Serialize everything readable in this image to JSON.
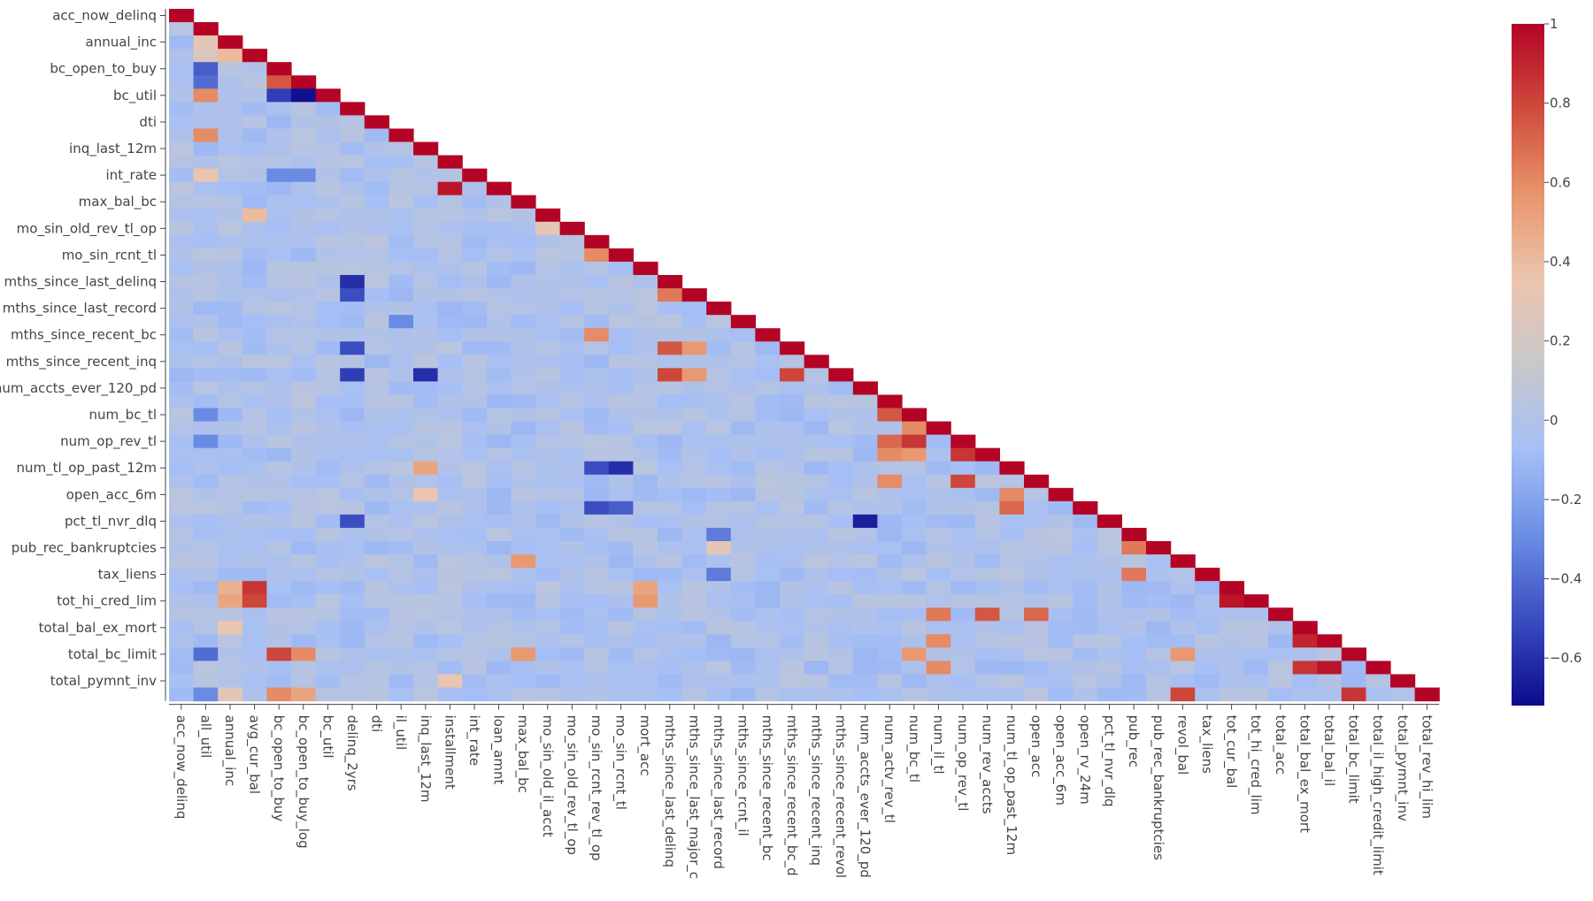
{
  "chart_data": {
    "type": "heatmap",
    "title": "",
    "xlabel": "",
    "ylabel": "",
    "x_categories": [
      "acc_now_delinq",
      "all_util",
      "annual_inc",
      "avg_cur_bal",
      "bc_open_to_buy",
      "bc_open_to_buy_log",
      "bc_util",
      "delinq_2yrs",
      "dti",
      "il_util",
      "inq_last_12m",
      "installment",
      "int_rate",
      "loan_amnt",
      "max_bal_bc",
      "mo_sin_old_il_acct",
      "mo_sin_old_rev_tl_op",
      "mo_sin_rcnt_rev_tl_op",
      "mo_sin_rcnt_tl",
      "mort_acc",
      "mths_since_last_delinq",
      "mths_since_last_major_c",
      "mths_since_last_record",
      "mths_since_rcnt_il",
      "mths_since_recent_bc",
      "mths_since_recent_bc_d",
      "mths_since_recent_inq",
      "mths_since_recent_revol",
      "num_accts_ever_120_pd",
      "num_actv_rev_tl",
      "num_bc_tl",
      "num_il_tl",
      "num_op_rev_tl",
      "num_rev_accts",
      "num_tl_op_past_12m",
      "open_acc",
      "open_acc_6m",
      "open_rv_24m",
      "pct_tl_nvr_dlq",
      "pub_rec",
      "pub_rec_bankruptcies",
      "revol_bal",
      "tax_liens",
      "tot_cur_bal",
      "tot_hi_cred_lim",
      "total_acc",
      "total_bal_ex_mort",
      "total_bal_il",
      "total_bc_limit",
      "total_il_high_credit_limit",
      "total_pymnt_inv",
      "total_rev_hi_lim"
    ],
    "y_tick_labels": [
      "acc_now_delinq",
      "annual_inc",
      "bc_open_to_buy",
      "bc_util",
      "dti",
      "inq_last_12m",
      "int_rate",
      "max_bal_bc",
      "mo_sin_old_rev_tl_op",
      "mo_sin_rcnt_tl",
      "mths_since_last_delinq",
      "mths_since_last_record",
      "mths_since_recent_bc",
      "mths_since_recent_inq",
      "num_accts_ever_120_pd",
      "num_bc_tl",
      "num_op_rev_tl",
      "num_tl_op_past_12m",
      "open_acc_6m",
      "pct_tl_nvr_dlq",
      "pub_rec_bankruptcies",
      "tax_liens",
      "tot_hi_cred_lim",
      "total_bal_ex_mort",
      "total_bc_limit",
      "total_pymnt_inv"
    ],
    "y_tick_every": 2,
    "mask": "lower-triangle (cells above the diagonal are blank)",
    "diagonal_value": 1,
    "default_value": -0.03,
    "highlights": [
      {
        "x": "all_util",
        "y": "annual_inc",
        "value": 0.3
      },
      {
        "x": "all_util",
        "y": "avg_cur_bal",
        "value": 0.25
      },
      {
        "x": "all_util",
        "y": "bc_open_to_buy",
        "value": -0.45
      },
      {
        "x": "all_util",
        "y": "bc_open_to_buy_log",
        "value": -0.4
      },
      {
        "x": "all_util",
        "y": "bc_util",
        "value": 0.6
      },
      {
        "x": "all_util",
        "y": "il_util",
        "value": 0.6
      },
      {
        "x": "all_util",
        "y": "int_rate",
        "value": 0.35
      },
      {
        "x": "all_util",
        "y": "num_bc_tl",
        "value": -0.3
      },
      {
        "x": "all_util",
        "y": "num_op_rev_tl",
        "value": -0.3
      },
      {
        "x": "all_util",
        "y": "total_bc_limit",
        "value": -0.4
      },
      {
        "x": "all_util",
        "y": "total_rev_hi_lim",
        "value": -0.3
      },
      {
        "x": "annual_inc",
        "y": "avg_cur_bal",
        "value": 0.4
      },
      {
        "x": "annual_inc",
        "y": "tot_cur_bal",
        "value": 0.45
      },
      {
        "x": "annual_inc",
        "y": "tot_hi_cred_lim",
        "value": 0.5
      },
      {
        "x": "annual_inc",
        "y": "total_bal_ex_mort",
        "value": 0.35
      },
      {
        "x": "annual_inc",
        "y": "total_rev_hi_lim",
        "value": 0.3
      },
      {
        "x": "avg_cur_bal",
        "y": "tot_cur_bal",
        "value": 0.85
      },
      {
        "x": "avg_cur_bal",
        "y": "tot_hi_cred_lim",
        "value": 0.8
      },
      {
        "x": "avg_cur_bal",
        "y": "mo_sin_old_il_acct",
        "value": 0.4
      },
      {
        "x": "bc_open_to_buy",
        "y": "bc_open_to_buy_log",
        "value": 0.75
      },
      {
        "x": "bc_open_to_buy",
        "y": "bc_util",
        "value": -0.55
      },
      {
        "x": "bc_open_to_buy",
        "y": "int_rate",
        "value": -0.3
      },
      {
        "x": "bc_open_to_buy",
        "y": "total_bc_limit",
        "value": 0.8
      },
      {
        "x": "bc_open_to_buy",
        "y": "total_rev_hi_lim",
        "value": 0.6
      },
      {
        "x": "bc_open_to_buy_log",
        "y": "bc_util",
        "value": -0.7
      },
      {
        "x": "bc_open_to_buy_log",
        "y": "int_rate",
        "value": -0.3
      },
      {
        "x": "bc_open_to_buy_log",
        "y": "total_bc_limit",
        "value": 0.6
      },
      {
        "x": "bc_open_to_buy_log",
        "y": "total_rev_hi_lim",
        "value": 0.5
      },
      {
        "x": "delinq_2yrs",
        "y": "mths_since_last_delinq",
        "value": -0.6
      },
      {
        "x": "delinq_2yrs",
        "y": "mths_since_last_major_c",
        "value": -0.5
      },
      {
        "x": "delinq_2yrs",
        "y": "mths_since_recent_bc_d",
        "value": -0.5
      },
      {
        "x": "delinq_2yrs",
        "y": "mths_since_recent_revol",
        "value": -0.55
      },
      {
        "x": "delinq_2yrs",
        "y": "pct_tl_nvr_dlq",
        "value": -0.5
      },
      {
        "x": "il_util",
        "y": "mths_since_rcnt_il",
        "value": -0.3
      },
      {
        "x": "inq_last_12m",
        "y": "mths_since_recent_revol",
        "value": -0.6
      },
      {
        "x": "inq_last_12m",
        "y": "num_tl_op_past_12m",
        "value": 0.5
      },
      {
        "x": "inq_last_12m",
        "y": "open_acc_6m",
        "value": 0.35
      },
      {
        "x": "installment",
        "y": "loan_amnt",
        "value": 0.95
      },
      {
        "x": "installment",
        "y": "total_pymnt_inv",
        "value": 0.35
      },
      {
        "x": "max_bal_bc",
        "y": "revol_bal",
        "value": 0.55
      },
      {
        "x": "max_bal_bc",
        "y": "total_bc_limit",
        "value": 0.55
      },
      {
        "x": "mo_sin_old_il_acct",
        "y": "mo_sin_old_rev_tl_op",
        "value": 0.3
      },
      {
        "x": "mo_sin_rcnt_rev_tl_op",
        "y": "mo_sin_rcnt_tl",
        "value": 0.6
      },
      {
        "x": "mo_sin_rcnt_rev_tl_op",
        "y": "mths_since_recent_bc",
        "value": 0.6
      },
      {
        "x": "mo_sin_rcnt_rev_tl_op",
        "y": "num_tl_op_past_12m",
        "value": -0.5
      },
      {
        "x": "mo_sin_rcnt_rev_tl_op",
        "y": "open_rv_24m",
        "value": -0.5
      },
      {
        "x": "mo_sin_rcnt_tl",
        "y": "num_tl_op_past_12m",
        "value": -0.6
      },
      {
        "x": "mo_sin_rcnt_tl",
        "y": "open_rv_24m",
        "value": -0.45
      },
      {
        "x": "mort_acc",
        "y": "tot_hi_cred_lim",
        "value": 0.55
      },
      {
        "x": "mort_acc",
        "y": "tot_cur_bal",
        "value": 0.5
      },
      {
        "x": "mths_since_last_delinq",
        "y": "mths_since_last_major_c",
        "value": 0.65
      },
      {
        "x": "mths_since_last_delinq",
        "y": "mths_since_recent_bc_d",
        "value": 0.75
      },
      {
        "x": "mths_since_last_delinq",
        "y": "mths_since_recent_revol",
        "value": 0.8
      },
      {
        "x": "mths_since_last_major_c",
        "y": "mths_since_recent_bc_d",
        "value": 0.55
      },
      {
        "x": "mths_since_last_major_c",
        "y": "mths_since_recent_revol",
        "value": 0.55
      },
      {
        "x": "mths_since_last_record",
        "y": "pub_rec",
        "value": -0.35
      },
      {
        "x": "mths_since_last_record",
        "y": "pub_rec_bankruptcies",
        "value": 0.3
      },
      {
        "x": "mths_since_last_record",
        "y": "tax_liens",
        "value": -0.35
      },
      {
        "x": "mths_since_recent_bc_d",
        "y": "mths_since_recent_revol",
        "value": 0.8
      },
      {
        "x": "num_accts_ever_120_pd",
        "y": "pct_tl_nvr_dlq",
        "value": -0.65
      },
      {
        "x": "num_actv_rev_tl",
        "y": "num_bc_tl",
        "value": 0.75
      },
      {
        "x": "num_actv_rev_tl",
        "y": "num_op_rev_tl",
        "value": 0.7
      },
      {
        "x": "num_actv_rev_tl",
        "y": "num_rev_accts",
        "value": 0.6
      },
      {
        "x": "num_actv_rev_tl",
        "y": "open_acc",
        "value": 0.6
      },
      {
        "x": "num_bc_tl",
        "y": "num_il_tl",
        "value": 0.6
      },
      {
        "x": "num_bc_tl",
        "y": "num_op_rev_tl",
        "value": 0.85
      },
      {
        "x": "num_bc_tl",
        "y": "num_rev_accts",
        "value": 0.55
      },
      {
        "x": "num_bc_tl",
        "y": "total_bc_limit",
        "value": 0.55
      },
      {
        "x": "num_il_tl",
        "y": "total_acc",
        "value": 0.65
      },
      {
        "x": "num_il_tl",
        "y": "total_bal_il",
        "value": 0.6
      },
      {
        "x": "num_il_tl",
        "y": "total_il_high_credit_limit",
        "value": 0.6
      },
      {
        "x": "num_op_rev_tl",
        "y": "num_rev_accts",
        "value": 0.85
      },
      {
        "x": "num_op_rev_tl",
        "y": "open_acc",
        "value": 0.8
      },
      {
        "x": "num_rev_accts",
        "y": "total_acc",
        "value": 0.75
      },
      {
        "x": "num_tl_op_past_12m",
        "y": "open_acc_6m",
        "value": 0.6
      },
      {
        "x": "num_tl_op_past_12m",
        "y": "open_rv_24m",
        "value": 0.7
      },
      {
        "x": "open_acc",
        "y": "total_acc",
        "value": 0.7
      },
      {
        "x": "pub_rec",
        "y": "pub_rec_bankruptcies",
        "value": 0.65
      },
      {
        "x": "pub_rec",
        "y": "tax_liens",
        "value": 0.65
      },
      {
        "x": "revol_bal",
        "y": "total_rev_hi_lim",
        "value": 0.8
      },
      {
        "x": "revol_bal",
        "y": "total_bc_limit",
        "value": 0.55
      },
      {
        "x": "tot_cur_bal",
        "y": "tot_hi_cred_lim",
        "value": 0.95
      },
      {
        "x": "total_bal_ex_mort",
        "y": "total_bal_il",
        "value": 0.9
      },
      {
        "x": "total_bal_ex_mort",
        "y": "total_il_high_credit_limit",
        "value": 0.85
      },
      {
        "x": "total_bal_il",
        "y": "total_il_high_credit_limit",
        "value": 0.95
      },
      {
        "x": "total_bc_limit",
        "y": "total_rev_hi_lim",
        "value": 0.85
      }
    ],
    "colorbar": {
      "min": -0.72,
      "max": 1,
      "colors": [
        "#0b0b8b",
        "#3a4cc0",
        "#6b8ee5",
        "#a6bff5",
        "#c8c8cc",
        "#ecc5ae",
        "#e8956c",
        "#cf4b3b",
        "#b40426"
      ],
      "ticks": [
        {
          "value": 1,
          "label": "1"
        },
        {
          "value": 0.8,
          "label": "0.8"
        },
        {
          "value": 0.6,
          "label": "0.6"
        },
        {
          "value": 0.4,
          "label": "0.4"
        },
        {
          "value": 0.2,
          "label": "0.2"
        },
        {
          "value": 0,
          "label": "0"
        },
        {
          "value": -0.2,
          "label": "−0.2"
        },
        {
          "value": -0.4,
          "label": "−0.4"
        },
        {
          "value": -0.6,
          "label": "−0.6"
        }
      ]
    }
  }
}
